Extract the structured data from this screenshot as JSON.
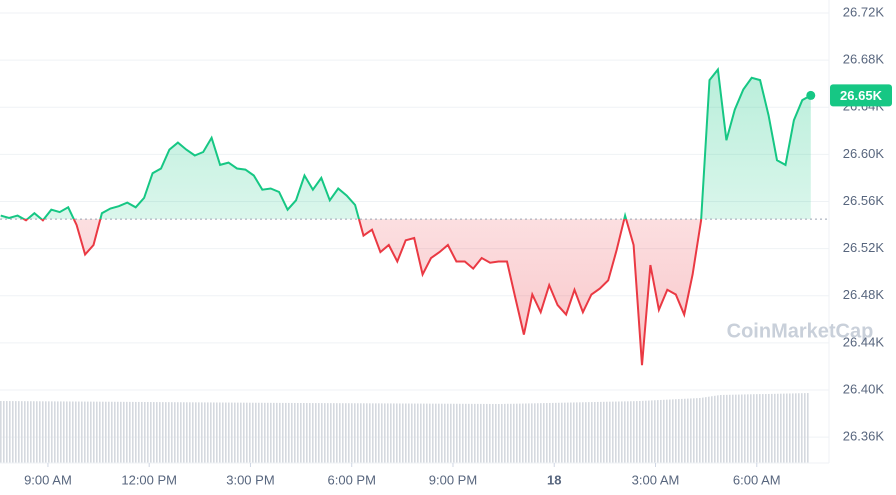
{
  "chart_data": {
    "type": "line",
    "x": [
      7.6,
      7.85,
      8.1,
      8.35,
      8.6,
      8.85,
      9.1,
      9.35,
      9.6,
      9.85,
      10.1,
      10.35,
      10.6,
      10.85,
      11.1,
      11.35,
      11.6,
      11.85,
      12.1,
      12.35,
      12.6,
      12.85,
      13.1,
      13.35,
      13.6,
      13.85,
      14.1,
      14.35,
      14.6,
      14.85,
      15.1,
      15.35,
      15.6,
      15.85,
      16.1,
      16.35,
      16.6,
      16.85,
      17.1,
      17.35,
      17.6,
      17.85,
      18.1,
      18.35,
      18.6,
      18.85,
      19.1,
      19.35,
      19.6,
      19.85,
      20.1,
      20.35,
      20.6,
      20.85,
      21.1,
      21.35,
      21.6,
      21.85,
      22.1,
      22.35,
      22.6,
      22.85,
      23.1,
      23.35,
      23.6,
      23.85,
      24.1,
      24.35,
      24.6,
      24.85,
      25.1,
      25.35,
      25.6,
      25.85,
      26.1,
      26.35,
      26.6,
      26.85,
      27.1,
      27.35,
      27.6,
      27.85,
      28.1,
      28.35,
      28.6,
      28.85,
      29.1,
      29.35,
      29.6,
      29.85,
      30.1,
      30.35,
      30.6,
      30.85,
      31.1,
      31.35,
      31.6
    ],
    "values": [
      26548,
      26546,
      26548,
      26544,
      26550,
      26544,
      26553,
      26551,
      26555,
      26540,
      26515,
      26523,
      26550,
      26554,
      26556,
      26559,
      26555,
      26563,
      26584,
      26588,
      26604,
      26610,
      26604,
      26599,
      26602,
      26614,
      26591,
      26593,
      26588,
      26587,
      26582,
      26570,
      26571,
      26568,
      26553,
      26561,
      26582,
      26570,
      26580,
      26561,
      26571,
      26565,
      26557,
      26531,
      26536,
      26517,
      26523,
      26509,
      26527,
      26529,
      26498,
      26512,
      26517,
      26523,
      26509,
      26509,
      26503,
      26512,
      26508,
      26509,
      26509,
      26478,
      26447,
      26481,
      26466,
      26489,
      26472,
      26464,
      26485,
      26466,
      26481,
      26486,
      26493,
      26519,
      26548,
      26523,
      26421,
      26506,
      26468,
      26485,
      26481,
      26464,
      26498,
      26544,
      26663,
      26672,
      26612,
      26638,
      26655,
      26665,
      26663,
      26633,
      26595,
      26591,
      26629,
      26646,
      26650
    ],
    "baseline": 26545,
    "up_color": "#16c784",
    "down_color": "#ea3943",
    "current_label": "26.65K",
    "watermark": "CoinMarketCap",
    "xlim": [
      7.58,
      32.14
    ],
    "xticks": [
      {
        "value": 9,
        "label": "9:00 AM"
      },
      {
        "value": 12,
        "label": "12:00 PM"
      },
      {
        "value": 15,
        "label": "3:00 PM"
      },
      {
        "value": 18,
        "label": "6:00 PM"
      },
      {
        "value": 21,
        "label": "9:00 PM"
      },
      {
        "value": 24,
        "label": "18"
      },
      {
        "value": 27,
        "label": "3:00 AM"
      },
      {
        "value": 30,
        "label": "6:00 AM"
      }
    ],
    "ylim": [
      26338,
      26731
    ],
    "yticks": [
      {
        "value": 26360,
        "label": "26.36K"
      },
      {
        "value": 26400,
        "label": "26.40K"
      },
      {
        "value": 26440,
        "label": "26.44K"
      },
      {
        "value": 26480,
        "label": "26.48K"
      },
      {
        "value": 26520,
        "label": "26.52K"
      },
      {
        "value": 26560,
        "label": "26.56K"
      },
      {
        "value": 26600,
        "label": "26.60K"
      },
      {
        "value": 26640,
        "label": "26.64K"
      },
      {
        "value": 26680,
        "label": "26.68K"
      },
      {
        "value": 26720,
        "label": "26.72K"
      }
    ],
    "grid": true
  }
}
